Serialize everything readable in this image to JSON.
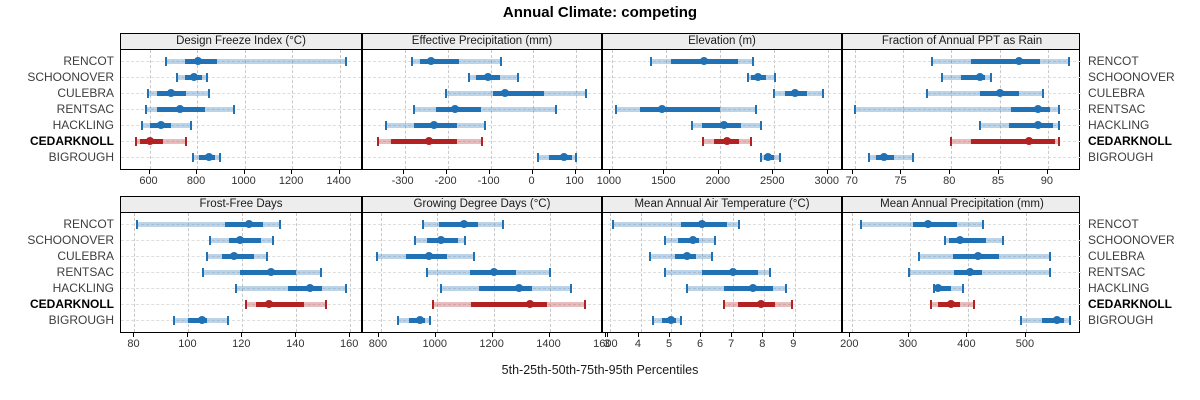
{
  "title": "Annual Climate: competing",
  "xlabel": "5th-25th-50th-75th-95th Percentiles",
  "colors": {
    "normal": "#2171b5",
    "normal_band": "rgba(33,113,181,0.30)",
    "highlight": "#b22222",
    "highlight_band": "rgba(178,34,34,0.30)",
    "strip_bg": "#ededed",
    "grid": "#c8c8c8",
    "row_guide": "#dedede",
    "border": "#000000"
  },
  "sites": [
    {
      "name": "RENCOT",
      "highlight": false
    },
    {
      "name": "SCHOONOVER",
      "highlight": false
    },
    {
      "name": "CULEBRA",
      "highlight": false
    },
    {
      "name": "RENTSAC",
      "highlight": false
    },
    {
      "name": "HACKLING",
      "highlight": false
    },
    {
      "name": "CEDARKNOLL",
      "highlight": true
    },
    {
      "name": "BIGROUGH",
      "highlight": false
    }
  ],
  "chart_data": {
    "type": "scatter",
    "variant": "percentile-dotplot-trellis",
    "percentile_labels": [
      "5th",
      "25th",
      "50th",
      "75th",
      "95th"
    ],
    "legend": "none",
    "grid": "dashed",
    "panels": [
      {
        "title": "Design Freeze Index (°C)",
        "ticks": [
          600,
          800,
          1000,
          1200,
          1400
        ],
        "domain": [
          480,
          1490
        ],
        "values": [
          [
            670,
            750,
            805,
            885,
            1425
          ],
          [
            715,
            750,
            786,
            820,
            840
          ],
          [
            595,
            630,
            690,
            755,
            850
          ],
          [
            585,
            630,
            728,
            835,
            955
          ],
          [
            568,
            600,
            647,
            690,
            775
          ],
          [
            545,
            560,
            603,
            658,
            755
          ],
          [
            785,
            810,
            850,
            875,
            895
          ]
        ]
      },
      {
        "title": "Effective Precipitation (mm)",
        "ticks": [
          -300,
          -200,
          -100,
          0,
          100
        ],
        "domain": [
          -399,
          159
        ],
        "values": [
          [
            -285,
            -265,
            -240,
            -175,
            -75
          ],
          [
            -150,
            -135,
            -106,
            -77,
            -35
          ],
          [
            -205,
            -95,
            -66,
            25,
            125
          ],
          [
            -280,
            -228,
            -183,
            -123,
            53
          ],
          [
            -345,
            -280,
            -233,
            -178,
            -114
          ],
          [
            -365,
            -333,
            -245,
            -179,
            -120
          ],
          [
            11,
            36,
            72,
            92,
            100
          ]
        ]
      },
      {
        "title": "Elevation (m)",
        "ticks": [
          1000,
          1500,
          2000,
          2500,
          3000
        ],
        "domain": [
          918,
          3122
        ],
        "values": [
          [
            1360,
            1545,
            1850,
            2170,
            2310
          ],
          [
            2260,
            2290,
            2350,
            2425,
            2510
          ],
          [
            2500,
            2600,
            2695,
            2805,
            2955
          ],
          [
            1040,
            1260,
            1465,
            2000,
            2335
          ],
          [
            1740,
            1835,
            2040,
            2195,
            2380
          ],
          [
            1840,
            1950,
            2070,
            2180,
            2290
          ],
          [
            2380,
            2410,
            2450,
            2500,
            2560
          ]
        ]
      },
      {
        "title": "Fraction of Annual PPT as Rain",
        "ticks": [
          70,
          75,
          80,
          85,
          90
        ],
        "domain": [
          68.8,
          93.4
        ],
        "values": [
          [
            78,
            82,
            87,
            89.2,
            92.2
          ],
          [
            79,
            81,
            83,
            83.5,
            84.1
          ],
          [
            77.5,
            83,
            85,
            87,
            89.5
          ],
          [
            70,
            86.2,
            89,
            90.2,
            91.1
          ],
          [
            83,
            86,
            89,
            90.5,
            91.1
          ],
          [
            80,
            82,
            88,
            90.7,
            91.1
          ],
          [
            71.5,
            72.2,
            73,
            74.1,
            76
          ]
        ]
      },
      {
        "title": "Frost-Free Days",
        "ticks": [
          80,
          100,
          120,
          140,
          160
        ],
        "domain": [
          75,
          164
        ],
        "values": [
          [
            81,
            113.5,
            122.5,
            127.5,
            134
          ],
          [
            108,
            115,
            119,
            127,
            131.5
          ],
          [
            107,
            112.5,
            117,
            124.5,
            129
          ],
          [
            105.5,
            119,
            130.5,
            140,
            149
          ],
          [
            117.5,
            137,
            145,
            149.5,
            158.5
          ],
          [
            121.5,
            125,
            130,
            143,
            151
          ],
          [
            94.5,
            100,
            105,
            107,
            114.5
          ]
        ]
      },
      {
        "title": "Growing Degree Days (°C)",
        "ticks": [
          800,
          1000,
          1200,
          1400,
          1600
        ],
        "domain": [
          737,
          1581
        ],
        "values": [
          [
            950,
            1005,
            1095,
            1145,
            1235
          ],
          [
            920,
            965,
            1015,
            1075,
            1100
          ],
          [
            785,
            890,
            970,
            1035,
            1130
          ],
          [
            965,
            1115,
            1200,
            1280,
            1400
          ],
          [
            1015,
            1150,
            1290,
            1335,
            1475
          ],
          [
            985,
            1120,
            1330,
            1390,
            1525
          ],
          [
            860,
            900,
            940,
            958,
            975
          ]
        ]
      },
      {
        "title": "Mean Annual Air Temperature (°C)",
        "ticks": [
          3,
          4,
          5,
          6,
          7,
          8,
          9
        ],
        "domain": [
          2.78,
          10.5
        ],
        "values": [
          [
            3.1,
            5.3,
            6.0,
            6.8,
            7.2
          ],
          [
            4.8,
            5.2,
            5.7,
            5.9,
            6.4
          ],
          [
            4.3,
            5.1,
            5.5,
            5.8,
            6.3
          ],
          [
            4.8,
            6.0,
            7.0,
            7.8,
            8.2
          ],
          [
            5.5,
            6.7,
            7.65,
            8.3,
            8.7
          ],
          [
            6.7,
            7.15,
            7.9,
            8.35,
            8.9
          ],
          [
            4.4,
            4.7,
            5.0,
            5.15,
            5.3
          ]
        ]
      },
      {
        "title": "Mean Annual Precipitation (mm)",
        "ticks": [
          200,
          300,
          400,
          500
        ],
        "domain": [
          184,
          594
        ],
        "values": [
          [
            215,
            305,
            330,
            380,
            425
          ],
          [
            360,
            367,
            386,
            430,
            460
          ],
          [
            315,
            373,
            416,
            453,
            540
          ],
          [
            298,
            376,
            402,
            423,
            540
          ],
          [
            340,
            343,
            348,
            370,
            390
          ],
          [
            335,
            348,
            370,
            385,
            410
          ],
          [
            490,
            527,
            552,
            565,
            575
          ]
        ]
      }
    ]
  }
}
